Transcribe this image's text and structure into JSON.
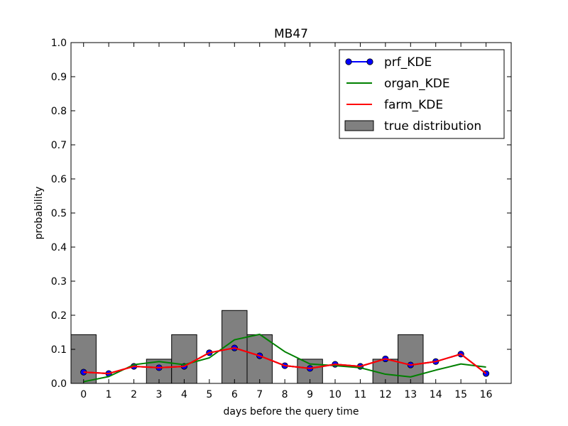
{
  "chart_data": {
    "type": "bar",
    "title": "MB47",
    "xlabel": "days before the query time",
    "ylabel": "probability",
    "xlim": [
      -0.5,
      17
    ],
    "ylim": [
      0,
      1.0
    ],
    "x_ticks": [
      0,
      1,
      2,
      3,
      4,
      5,
      6,
      7,
      8,
      9,
      10,
      11,
      12,
      13,
      14,
      15,
      16
    ],
    "y_ticks": [
      "0.0",
      "0.1",
      "0.2",
      "0.3",
      "0.4",
      "0.5",
      "0.6",
      "0.7",
      "0.8",
      "0.9",
      "1.0"
    ],
    "grid": false,
    "legend_position": "top-right",
    "histogram": {
      "name": "true distribution",
      "color": "#808080",
      "bins": [
        {
          "start": -0.5,
          "end": 0.5,
          "value": 0.143
        },
        {
          "start": 0.5,
          "end": 1.5,
          "value": 0
        },
        {
          "start": 1.5,
          "end": 2.5,
          "value": 0
        },
        {
          "start": 2.5,
          "end": 3.5,
          "value": 0.071
        },
        {
          "start": 3.5,
          "end": 4.5,
          "value": 0.143
        },
        {
          "start": 4.5,
          "end": 5.5,
          "value": 0
        },
        {
          "start": 5.5,
          "end": 6.5,
          "value": 0.214
        },
        {
          "start": 6.5,
          "end": 7.5,
          "value": 0.143
        },
        {
          "start": 7.5,
          "end": 8.5,
          "value": 0
        },
        {
          "start": 8.5,
          "end": 9.5,
          "value": 0.071
        },
        {
          "start": 9.5,
          "end": 10.5,
          "value": 0
        },
        {
          "start": 10.5,
          "end": 11.5,
          "value": 0
        },
        {
          "start": 11.5,
          "end": 12.5,
          "value": 0.071
        },
        {
          "start": 12.5,
          "end": 13.5,
          "value": 0.143
        },
        {
          "start": 13.5,
          "end": 14.5,
          "value": 0
        },
        {
          "start": 14.5,
          "end": 15.5,
          "value": 0
        }
      ]
    },
    "series": [
      {
        "name": "prf_KDE",
        "color": "#0000ff",
        "marker": "circle",
        "x": [
          0,
          1,
          2,
          3,
          4,
          5,
          6,
          7,
          8,
          9,
          10,
          11,
          12,
          13,
          14,
          15,
          16
        ],
        "values": [
          0.033,
          0.029,
          0.05,
          0.046,
          0.05,
          0.09,
          0.104,
          0.081,
          0.052,
          0.044,
          0.056,
          0.05,
          0.072,
          0.054,
          0.064,
          0.086,
          0.029
        ]
      },
      {
        "name": "organ_KDE",
        "color": "#008000",
        "x": [
          0,
          1,
          2,
          3,
          4,
          5,
          6,
          7,
          8,
          9,
          10,
          11,
          12,
          13,
          14,
          15,
          16
        ],
        "values": [
          0.005,
          0.02,
          0.055,
          0.064,
          0.055,
          0.075,
          0.128,
          0.144,
          0.093,
          0.057,
          0.052,
          0.046,
          0.027,
          0.019,
          0.039,
          0.057,
          0.048
        ]
      },
      {
        "name": "farm_KDE",
        "color": "#ff0000",
        "x": [
          0,
          1,
          2,
          3,
          4,
          5,
          6,
          7,
          8,
          9,
          10,
          11,
          12,
          13,
          14,
          15,
          16
        ],
        "values": [
          0.033,
          0.029,
          0.05,
          0.046,
          0.05,
          0.09,
          0.104,
          0.081,
          0.052,
          0.044,
          0.056,
          0.05,
          0.072,
          0.054,
          0.064,
          0.086,
          0.029
        ]
      }
    ]
  }
}
